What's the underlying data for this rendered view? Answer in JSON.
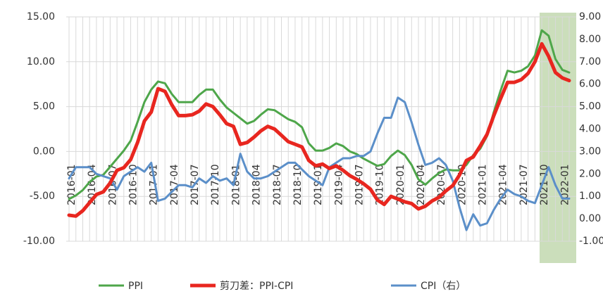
{
  "chart_data": {
    "type": "line",
    "categories": [
      "2016-01",
      null,
      null,
      "2016-04",
      null,
      null,
      "2016-07",
      null,
      null,
      "2016-10",
      null,
      null,
      "2017-01",
      null,
      null,
      "2017-04",
      null,
      null,
      "2017-07",
      null,
      null,
      "2017-10",
      null,
      null,
      "2018-01",
      null,
      null,
      "2018-04",
      null,
      null,
      "2018-07",
      null,
      null,
      "2018-10",
      null,
      null,
      "2019-01",
      null,
      null,
      "2019-04",
      null,
      null,
      "2019-07",
      null,
      null,
      "2019-10",
      null,
      null,
      "2020-01",
      null,
      null,
      "2020-04",
      null,
      null,
      "2020-07",
      null,
      null,
      "2020-10",
      null,
      null,
      "2021-01",
      null,
      null,
      "2021-04",
      null,
      null,
      "2021-07",
      null,
      null,
      "2021-10",
      null,
      null,
      "2022-01",
      null
    ],
    "series": [
      {
        "name": "PPI",
        "color": "#4ea64a",
        "values": [
          -5.3,
          -4.9,
          -4.3,
          -3.4,
          -2.8,
          -2.6,
          -1.7,
          -0.8,
          0.1,
          1.2,
          3.3,
          5.5,
          6.9,
          7.8,
          7.6,
          6.4,
          5.5,
          5.5,
          5.5,
          6.3,
          6.9,
          6.9,
          5.8,
          4.9,
          4.3,
          3.7,
          3.1,
          3.4,
          4.1,
          4.7,
          4.6,
          4.1,
          3.6,
          3.3,
          2.7,
          0.9,
          0.1,
          0.1,
          0.4,
          0.9,
          0.6,
          0.0,
          -0.3,
          -0.8,
          -1.2,
          -1.6,
          -1.4,
          -0.5,
          0.1,
          -0.4,
          -1.5,
          -3.1,
          -3.7,
          -3.0,
          -2.4,
          -2.0,
          -2.1,
          -2.1,
          -1.5,
          -0.4,
          0.3,
          1.7,
          4.4,
          6.8,
          9.0,
          8.8,
          9.0,
          9.5,
          10.7,
          13.5,
          12.9,
          10.3,
          9.1,
          8.8
        ]
      },
      {
        "name": "剪刀差：PPI-CPI",
        "color": "#e8261f",
        "values": [
          -7.1,
          -7.2,
          -6.6,
          -5.7,
          -4.8,
          -4.5,
          -3.5,
          -2.1,
          -1.8,
          -0.9,
          1.0,
          3.4,
          4.4,
          7.0,
          6.7,
          5.2,
          4.0,
          4.0,
          4.1,
          4.5,
          5.3,
          5.0,
          4.1,
          3.1,
          2.8,
          0.8,
          1.0,
          1.6,
          2.3,
          2.8,
          2.5,
          1.8,
          1.1,
          0.8,
          0.5,
          -1.0,
          -1.6,
          -1.4,
          -1.9,
          -1.6,
          -2.1,
          -2.7,
          -3.1,
          -3.6,
          -4.2,
          -5.4,
          -5.9,
          -5.0,
          -5.3,
          -5.6,
          -5.8,
          -6.4,
          -6.1,
          -5.5,
          -5.1,
          -4.4,
          -3.8,
          -2.6,
          -1.0,
          -0.6,
          0.6,
          1.9,
          4.0,
          5.9,
          7.7,
          7.7,
          8.0,
          8.7,
          10.0,
          12.0,
          10.6,
          8.8,
          8.2,
          7.9
        ]
      },
      {
        "name": "CPI（右）",
        "color": "#5b8fc9",
        "axis": "y2",
        "values": [
          1.8,
          2.3,
          2.3,
          2.3,
          2.0,
          1.9,
          1.8,
          1.3,
          1.9,
          2.1,
          2.3,
          2.1,
          2.5,
          0.8,
          0.9,
          1.2,
          1.5,
          1.5,
          1.4,
          1.8,
          1.6,
          1.9,
          1.7,
          1.8,
          1.5,
          2.9,
          2.1,
          1.8,
          1.8,
          1.9,
          2.1,
          2.3,
          2.5,
          2.5,
          2.2,
          1.9,
          1.7,
          1.5,
          2.3,
          2.5,
          2.7,
          2.7,
          2.8,
          2.8,
          3.0,
          3.8,
          4.5,
          4.5,
          5.4,
          5.2,
          4.3,
          3.3,
          2.4,
          2.5,
          2.7,
          2.4,
          1.7,
          0.5,
          -0.5,
          0.2,
          -0.3,
          -0.2,
          0.4,
          0.9,
          1.3,
          1.1,
          1.0,
          0.8,
          0.7,
          1.5,
          2.3,
          1.5,
          0.9,
          0.9
        ]
      }
    ],
    "ylim": [
      -10,
      15
    ],
    "yticks": [
      {
        "value": -10,
        "label": "-10.00"
      },
      {
        "value": -5,
        "label": "-5.00"
      },
      {
        "value": 0,
        "label": "0.00"
      },
      {
        "value": 5,
        "label": "5.00"
      },
      {
        "value": 10,
        "label": "10.00"
      },
      {
        "value": 15,
        "label": "15.00"
      }
    ],
    "y2lim": [
      -1,
      9
    ],
    "y2ticks": [
      {
        "value": -1,
        "label": "-1.00"
      },
      {
        "value": 0,
        "label": "0.00"
      },
      {
        "value": 1,
        "label": "1.00"
      },
      {
        "value": 2,
        "label": "2.00"
      },
      {
        "value": 3,
        "label": "3.00"
      },
      {
        "value": 4,
        "label": "4.00"
      },
      {
        "value": 5,
        "label": "5.00"
      },
      {
        "value": 6,
        "label": "6.00"
      },
      {
        "value": 7,
        "label": "7.00"
      },
      {
        "value": 8,
        "label": "8.00"
      },
      {
        "value": 9,
        "label": "9.00"
      }
    ],
    "grid": true
  }
}
